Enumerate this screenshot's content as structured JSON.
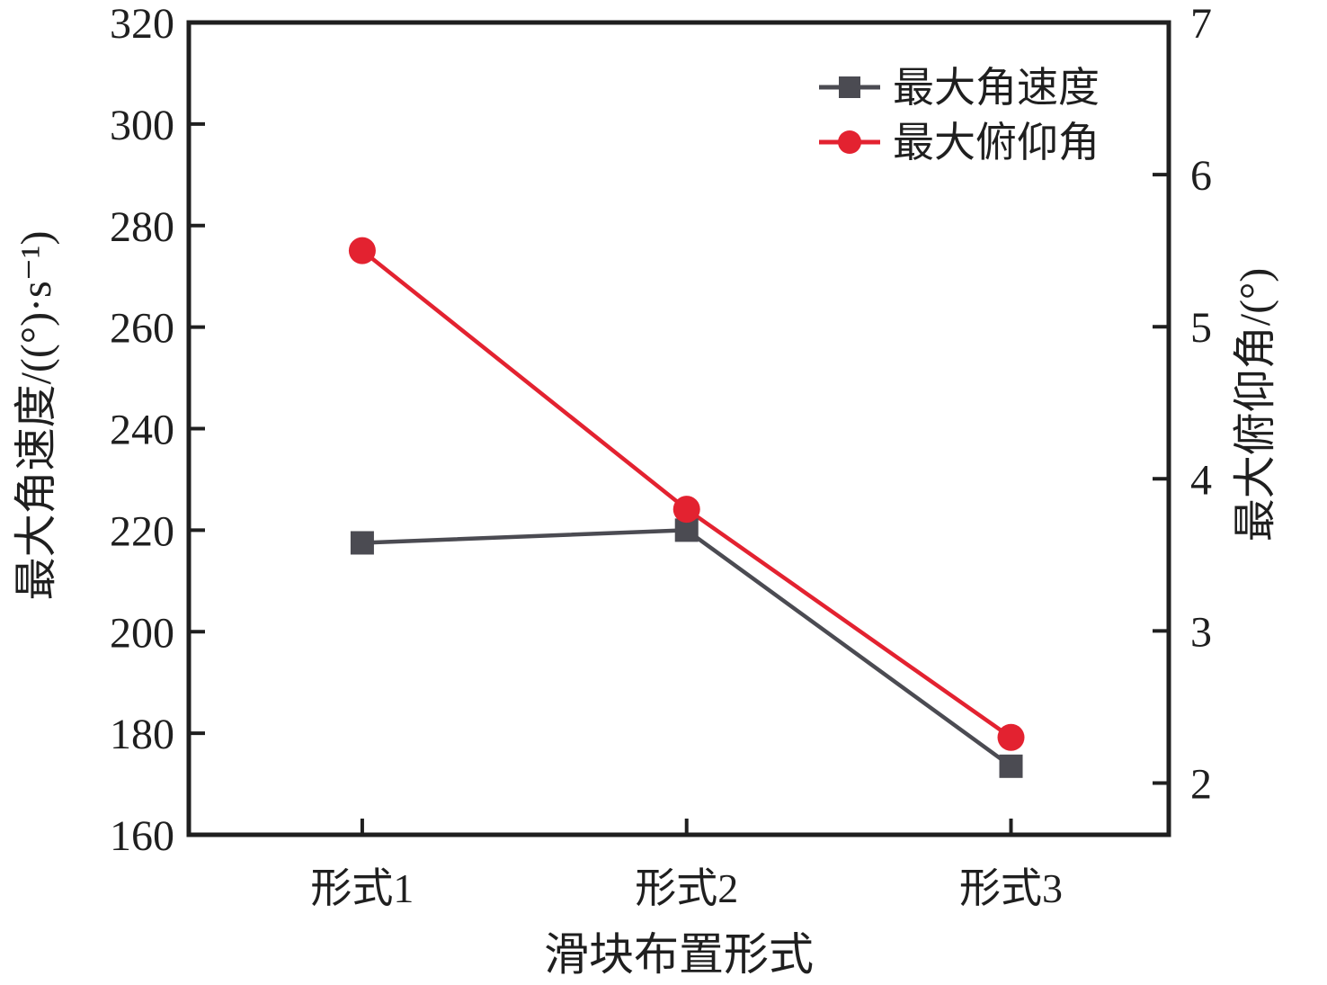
{
  "chart_data": {
    "type": "line",
    "title": "",
    "categories": [
      "形式1",
      "形式2",
      "形式3"
    ],
    "x_axis": {
      "label": "滑块布置形式"
    },
    "left_axis": {
      "label": "最大角速度/((°)·s⁻¹)",
      "min": 160,
      "max": 320,
      "tick_step": 20,
      "ticks": [
        160,
        180,
        200,
        220,
        240,
        260,
        280,
        300,
        320
      ]
    },
    "right_axis": {
      "label": "最大俯仰角/(°)",
      "min": 1.66,
      "max": 7,
      "tick_step": 1,
      "ticks": [
        2,
        3,
        4,
        5,
        6,
        7
      ]
    },
    "series": [
      {
        "name": "最大角速度",
        "axis": "left",
        "marker": "square",
        "color": "#4b4b52",
        "values": [
          217.5,
          220,
          173.5
        ]
      },
      {
        "name": "最大俯仰角",
        "axis": "right",
        "marker": "circle",
        "color": "#e32230",
        "values": [
          5.5,
          3.8,
          2.3
        ]
      }
    ],
    "legend": {
      "position": "top-right"
    },
    "grid": false,
    "frame": true,
    "colors": {
      "axis": "#1f1f1f",
      "background": "#ffffff"
    }
  }
}
